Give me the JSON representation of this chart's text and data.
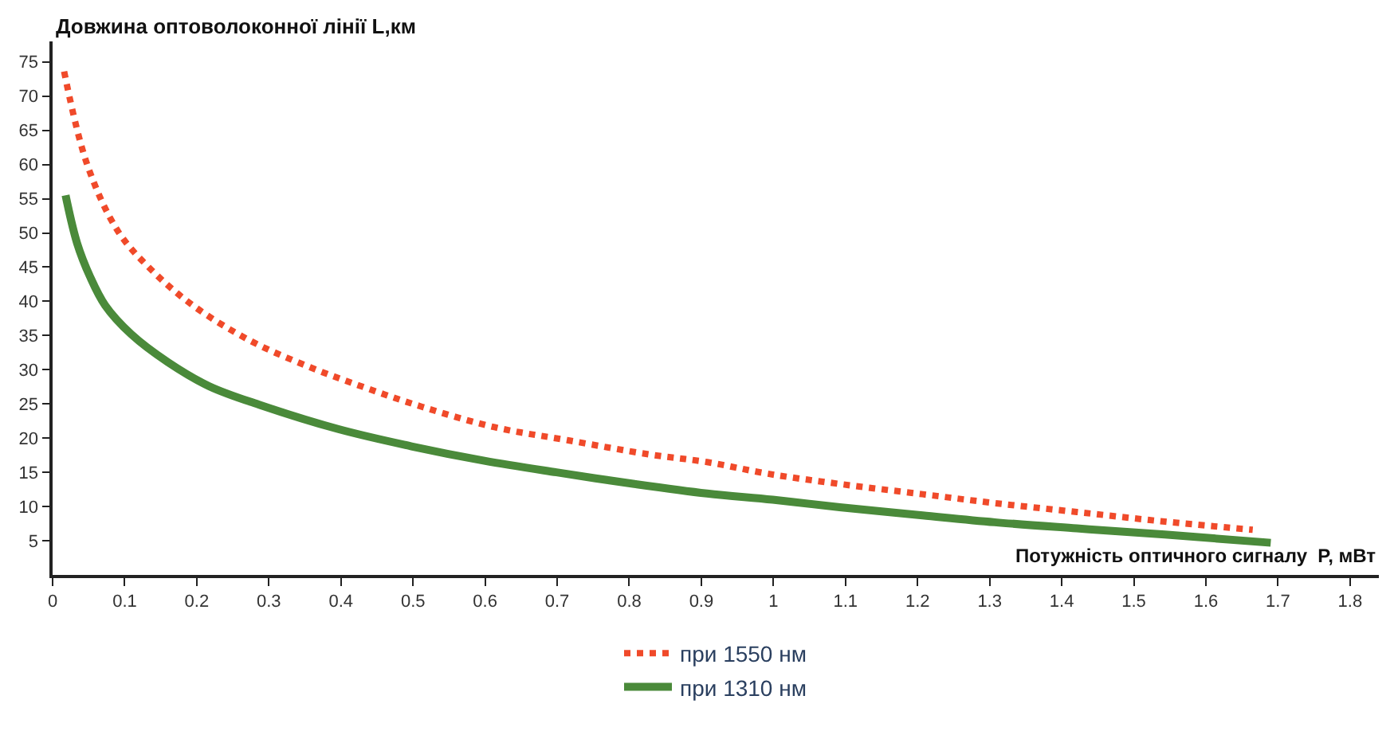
{
  "chart_data": {
    "type": "line",
    "xlabel": "Потужність оптичного сигналу  P, мВт",
    "ylabel": "Довжина оптоволоконної лінії L,км",
    "xlim": [
      0,
      1.84
    ],
    "xticks": [
      0,
      0.1,
      0.2,
      0.3,
      0.4,
      0.5,
      0.6,
      0.7,
      0.8,
      0.9,
      1,
      1.1,
      1.2,
      1.3,
      1.4,
      1.5,
      1.6,
      1.7,
      1.8
    ],
    "ylim": [
      0,
      78
    ],
    "yticks": [
      5,
      10,
      15,
      20,
      25,
      30,
      35,
      40,
      45,
      50,
      55,
      60,
      65,
      70,
      75
    ],
    "legend": "bottom",
    "marker": "none",
    "series": [
      {
        "name": "при 1550 нм",
        "color": "#f04a2a",
        "line_style": "dotted",
        "x": [
          0.016,
          0.048,
          0.091,
          0.138,
          0.196,
          0.275,
          0.354,
          0.433,
          0.512,
          0.613,
          0.714,
          0.829,
          0.908,
          0.992,
          1.092,
          1.207,
          1.307,
          1.421,
          1.543,
          1.665
        ],
        "values": [
          73.6,
          60.0,
          50.2,
          44.5,
          39.3,
          34.2,
          30.5,
          27.4,
          24.6,
          21.6,
          19.7,
          17.6,
          16.5,
          14.8,
          13.3,
          11.8,
          10.5,
          9.2,
          7.8,
          6.6
        ]
      },
      {
        "name": "при 1310 нм",
        "color": "#4a8a3a",
        "line_style": "solid",
        "x": [
          0.018,
          0.034,
          0.052,
          0.073,
          0.109,
          0.16,
          0.217,
          0.289,
          0.397,
          0.498,
          0.599,
          0.699,
          0.807,
          0.908,
          0.999,
          1.092,
          1.207,
          1.307,
          1.421,
          1.543,
          1.69
        ],
        "values": [
          55.5,
          48.5,
          43.6,
          39.4,
          35.2,
          31.1,
          27.6,
          24.8,
          21.3,
          18.8,
          16.7,
          15.0,
          13.3,
          11.9,
          11.0,
          9.9,
          8.7,
          7.7,
          6.8,
          5.9,
          4.7
        ]
      }
    ]
  }
}
